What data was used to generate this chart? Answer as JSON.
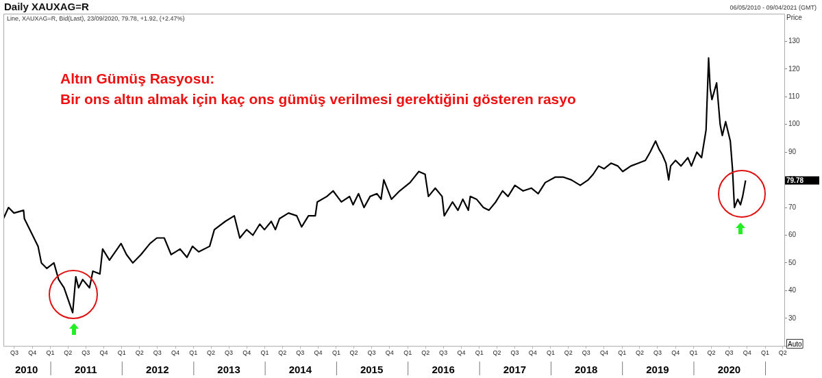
{
  "chart_data": {
    "type": "line",
    "title": "Daily XAUXAG=R",
    "subtitle": "Line, XAUXAG=R, Bid(Last), 23/09/2020, 79.78, +1.92, (+2.47%)",
    "ylabel": "Price",
    "annotations": [
      "Altın Gümüş Rasyosu:",
      "Bir ons altın almak için kaç ons gümüş verilmesi gerektiğini gösteren rasyo",
      "06/05/2010 - 09/04/2021 (GMT)",
      "Auto",
      "79.78"
    ],
    "x": [
      "2010-05-06",
      "2010-06-01",
      "2010-06-29",
      "2010-08-17",
      "2010-08-21",
      "2010-10-02",
      "2010-10-30",
      "2010-11-16",
      "2010-12-14",
      "2011-01-19",
      "2011-02-12",
      "2011-03-12",
      "2011-04-25",
      "2011-05-11",
      "2011-05-25",
      "2011-06-15",
      "2011-07-20",
      "2011-08-06",
      "2011-09-11",
      "2011-09-25",
      "2011-10-30",
      "2011-12-28",
      "2012-01-25",
      "2012-02-26",
      "2012-04-08",
      "2012-05-24",
      "2012-06-28",
      "2012-08-05",
      "2012-09-09",
      "2012-10-25",
      "2012-11-29",
      "2012-12-27",
      "2013-01-28",
      "2013-03-25",
      "2013-04-18",
      "2013-06-13",
      "2013-07-29",
      "2013-08-26",
      "2013-09-30",
      "2013-11-01",
      "2013-12-06",
      "2013-12-30",
      "2014-02-03",
      "2014-02-24",
      "2014-03-17",
      "2014-05-02",
      "2014-06-13",
      "2014-07-08",
      "2014-08-12",
      "2014-09-16",
      "2014-09-26",
      "2014-11-14",
      "2014-12-16",
      "2015-01-27",
      "2015-03-10",
      "2015-03-28",
      "2015-04-25",
      "2015-05-23",
      "2015-06-23",
      "2015-07-28",
      "2015-08-18",
      "2015-09-01",
      "2015-10-10",
      "2015-11-21",
      "2016-01-13",
      "2016-02-27",
      "2016-03-30",
      "2016-04-16",
      "2016-05-21",
      "2016-06-25",
      "2016-07-06",
      "2016-08-17",
      "2016-09-14",
      "2016-10-09",
      "2016-11-06",
      "2016-11-16",
      "2016-12-18",
      "2017-01-22",
      "2017-02-19",
      "2017-03-26",
      "2017-04-30",
      "2017-05-28",
      "2017-07-02",
      "2017-08-13",
      "2017-09-24",
      "2017-10-29",
      "2017-12-04",
      "2018-01-25",
      "2018-03-05",
      "2018-04-16",
      "2018-06-01",
      "2018-07-12",
      "2018-08-06",
      "2018-09-03",
      "2018-10-01",
      "2018-11-05",
      "2018-12-10",
      "2019-01-04",
      "2019-02-15",
      "2019-03-25",
      "2019-04-30",
      "2019-05-24",
      "2019-06-21",
      "2019-07-09",
      "2019-07-26",
      "2019-08-13",
      "2019-08-27",
      "2019-09-06",
      "2019-10-01",
      "2019-10-29",
      "2019-12-03",
      "2019-12-21",
      "2020-01-18",
      "2020-02-11",
      "2020-03-05",
      "2020-03-18",
      "2020-03-26",
      "2020-04-04",
      "2020-04-28",
      "2020-05-16",
      "2020-05-27",
      "2020-06-13",
      "2020-07-07",
      "2020-07-18",
      "2020-07-28",
      "2020-08-14",
      "2020-08-28",
      "2020-09-08",
      "2020-09-23"
    ],
    "series": [
      {
        "color": "#000000",
        "values": [
          66,
          70,
          68,
          69,
          66,
          60,
          56,
          50,
          48,
          50,
          44,
          41,
          32,
          45,
          41,
          44,
          41,
          47,
          46,
          55,
          51,
          57,
          53,
          50,
          53,
          57,
          59,
          59,
          53,
          55,
          52,
          56,
          54,
          56,
          62,
          65,
          67,
          59,
          62,
          60,
          64,
          62,
          65,
          62,
          66,
          68,
          67,
          63,
          67,
          67,
          72,
          74,
          76,
          72,
          74,
          71,
          75,
          70,
          74,
          75,
          73,
          80,
          73,
          76,
          79,
          83,
          82,
          74,
          77,
          74,
          67,
          72,
          69,
          73,
          69,
          74,
          73,
          70,
          69,
          72,
          76,
          74,
          78,
          76,
          77,
          75,
          79,
          81,
          81,
          80,
          78,
          80,
          82,
          85,
          84,
          86,
          85,
          83,
          85,
          86,
          87,
          90,
          94,
          91,
          89,
          86,
          80,
          85,
          87,
          85,
          88,
          85,
          90,
          88,
          98,
          124,
          113,
          109,
          115,
          100,
          96,
          101,
          94,
          84,
          70,
          73,
          71,
          74,
          79.78
        ]
      }
    ],
    "xlim": [
      "2010-05-06",
      "2021-04-09"
    ],
    "xticks": [
      {
        "value": "2010-07-01",
        "label": "Q3"
      },
      {
        "value": "2010-10-01",
        "label": "Q4"
      },
      {
        "value": "2011-01-01",
        "label": "Q1"
      },
      {
        "value": "2011-04-01",
        "label": "Q2"
      },
      {
        "value": "2011-07-01",
        "label": "Q3"
      },
      {
        "value": "2011-10-01",
        "label": "Q4"
      },
      {
        "value": "2012-01-01",
        "label": "Q1"
      },
      {
        "value": "2012-04-01",
        "label": "Q2"
      },
      {
        "value": "2012-07-01",
        "label": "Q3"
      },
      {
        "value": "2012-10-01",
        "label": "Q4"
      },
      {
        "value": "2013-01-01",
        "label": "Q1"
      },
      {
        "value": "2013-04-01",
        "label": "Q2"
      },
      {
        "value": "2013-07-01",
        "label": "Q3"
      },
      {
        "value": "2013-10-01",
        "label": "Q4"
      },
      {
        "value": "2014-01-01",
        "label": "Q1"
      },
      {
        "value": "2014-04-01",
        "label": "Q2"
      },
      {
        "value": "2014-07-01",
        "label": "Q3"
      },
      {
        "value": "2014-10-01",
        "label": "Q4"
      },
      {
        "value": "2015-01-01",
        "label": "Q1"
      },
      {
        "value": "2015-04-01",
        "label": "Q2"
      },
      {
        "value": "2015-07-01",
        "label": "Q3"
      },
      {
        "value": "2015-10-01",
        "label": "Q4"
      },
      {
        "value": "2016-01-01",
        "label": "Q1"
      },
      {
        "value": "2016-04-01",
        "label": "Q2"
      },
      {
        "value": "2016-07-01",
        "label": "Q3"
      },
      {
        "value": "2016-10-01",
        "label": "Q4"
      },
      {
        "value": "2017-01-01",
        "label": "Q1"
      },
      {
        "value": "2017-04-01",
        "label": "Q2"
      },
      {
        "value": "2017-07-01",
        "label": "Q3"
      },
      {
        "value": "2017-10-01",
        "label": "Q4"
      },
      {
        "value": "2018-01-01",
        "label": "Q1"
      },
      {
        "value": "2018-04-01",
        "label": "Q2"
      },
      {
        "value": "2018-07-01",
        "label": "Q3"
      },
      {
        "value": "2018-10-01",
        "label": "Q4"
      },
      {
        "value": "2019-01-01",
        "label": "Q1"
      },
      {
        "value": "2019-04-01",
        "label": "Q2"
      },
      {
        "value": "2019-07-01",
        "label": "Q3"
      },
      {
        "value": "2019-10-01",
        "label": "Q4"
      },
      {
        "value": "2020-01-01",
        "label": "Q1"
      },
      {
        "value": "2020-04-01",
        "label": "Q2"
      },
      {
        "value": "2020-07-01",
        "label": "Q3"
      },
      {
        "value": "2020-10-01",
        "label": "Q4"
      },
      {
        "value": "2021-01-01",
        "label": "Q1"
      },
      {
        "value": "2021-04-01",
        "label": "Q2"
      }
    ],
    "x2lim": [
      "2010-05-06",
      "2021-04-09"
    ],
    "x2ticks": [
      {
        "value": "2010-09-01",
        "label": "2010"
      },
      {
        "value": "2011-01-01",
        "label": null
      },
      {
        "value": "2011-07-01",
        "label": "2011"
      },
      {
        "value": "2012-01-01",
        "label": null
      },
      {
        "value": "2012-07-01",
        "label": "2012"
      },
      {
        "value": "2013-01-01",
        "label": null
      },
      {
        "value": "2013-07-01",
        "label": "2013"
      },
      {
        "value": "2014-01-01",
        "label": null
      },
      {
        "value": "2014-07-01",
        "label": "2014"
      },
      {
        "value": "2015-01-01",
        "label": null
      },
      {
        "value": "2015-07-01",
        "label": "2015"
      },
      {
        "value": "2016-01-01",
        "label": null
      },
      {
        "value": "2016-07-01",
        "label": "2016"
      },
      {
        "value": "2017-01-01",
        "label": null
      },
      {
        "value": "2017-07-01",
        "label": "2017"
      },
      {
        "value": "2018-01-01",
        "label": null
      },
      {
        "value": "2018-07-01",
        "label": "2018"
      },
      {
        "value": "2019-01-01",
        "label": null
      },
      {
        "value": "2019-07-01",
        "label": "2019"
      },
      {
        "value": "2020-01-01",
        "label": null
      },
      {
        "value": "2020-07-01",
        "label": "2020"
      },
      {
        "value": "2021-01-01",
        "label": null
      }
    ],
    "ylim": [
      20,
      140
    ],
    "yticks": [
      {
        "value": 20,
        "label": null
      },
      30,
      40,
      50,
      60,
      70,
      80,
      90,
      100,
      110,
      120,
      130
    ],
    "grid": false,
    "legend": false,
    "marker": "none",
    "line_style": "solid"
  }
}
